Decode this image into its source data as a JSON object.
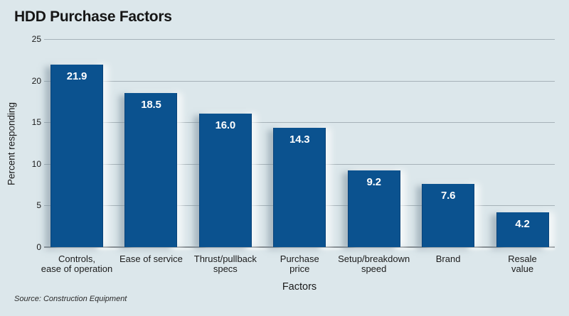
{
  "title": "HDD Purchase Factors",
  "source_note": "Source: Construction Equipment",
  "chart_data": {
    "type": "bar",
    "title": "HDD Purchase Factors",
    "categories": [
      "Controls, ease of operation",
      "Ease of service",
      "Thrust/pullback specs",
      "Purchase price",
      "Setup/breakdown speed",
      "Brand",
      "Resale value"
    ],
    "category_label_lines": [
      [
        "Controls,",
        "ease of operation"
      ],
      [
        "Ease of service"
      ],
      [
        "Thrust/pullback",
        "specs"
      ],
      [
        "Purchase",
        "price"
      ],
      [
        "Setup/breakdown",
        "speed"
      ],
      [
        "Brand"
      ],
      [
        "Resale",
        "value"
      ]
    ],
    "values": [
      21.9,
      18.5,
      16.0,
      14.3,
      9.2,
      7.6,
      4.2
    ],
    "value_labels": [
      "21.9",
      "18.5",
      "16.0",
      "14.3",
      "9.2",
      "7.6",
      "4.2"
    ],
    "xlabel": "Factors",
    "ylabel": "Percent responding",
    "ylim": [
      0,
      25
    ],
    "yticks": [
      0,
      5,
      10,
      15,
      20,
      25
    ],
    "grid": true,
    "legend": "none",
    "bar_color": "#0b528f",
    "value_label_color": "#ffffff",
    "background_color": "#dce7eb",
    "gridline_color": "#a6b2b8"
  }
}
